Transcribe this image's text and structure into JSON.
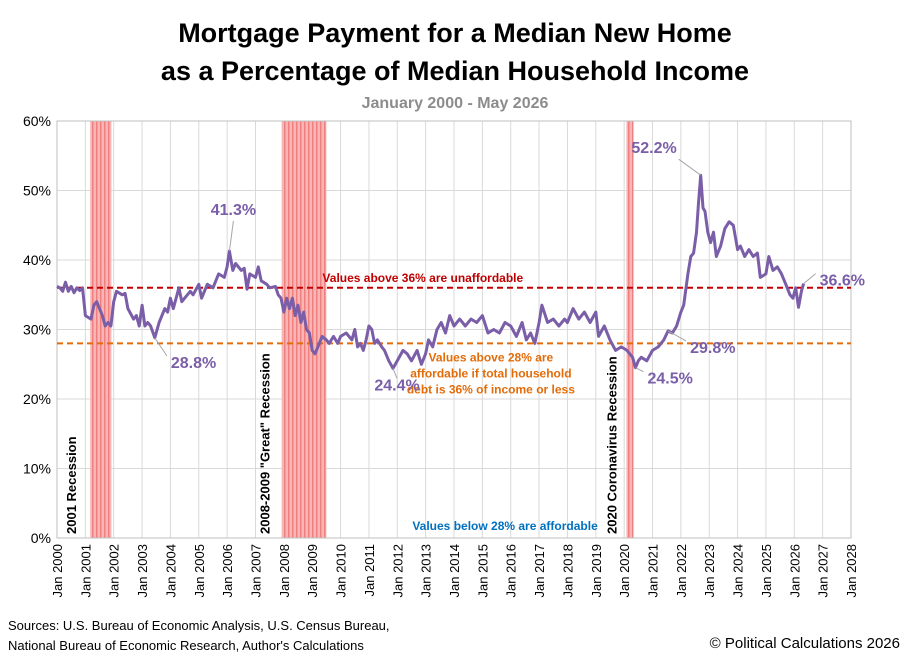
{
  "chart_data": {
    "type": "line",
    "title": [
      "Mortgage Payment for a Median New Home",
      "as a Percentage of Median Household Income"
    ],
    "subtitle": "January 2000 - May 2026",
    "color": "#7a5ea8",
    "grid": true,
    "xlim": [
      2000,
      2028
    ],
    "xticks": [
      {
        "value": 2000,
        "label": "Jan 2000"
      },
      {
        "value": 2001,
        "label": "Jan 2001"
      },
      {
        "value": 2002,
        "label": "Jan 2002"
      },
      {
        "value": 2003,
        "label": "Jan 2003"
      },
      {
        "value": 2004,
        "label": "Jan 2004"
      },
      {
        "value": 2005,
        "label": "Jan 2005"
      },
      {
        "value": 2006,
        "label": "Jan 2006"
      },
      {
        "value": 2007,
        "label": "Jan 2007"
      },
      {
        "value": 2008,
        "label": "Jan 2008"
      },
      {
        "value": 2009,
        "label": "Jan 2009"
      },
      {
        "value": 2010,
        "label": "Jan 2010"
      },
      {
        "value": 2011,
        "label": "Jan 2011"
      },
      {
        "value": 2012,
        "label": "Jan 2012"
      },
      {
        "value": 2013,
        "label": "Jan 2013"
      },
      {
        "value": 2014,
        "label": "Jan 2014"
      },
      {
        "value": 2015,
        "label": "Jan 2015"
      },
      {
        "value": 2016,
        "label": "Jan 2016"
      },
      {
        "value": 2017,
        "label": "Jan 2017"
      },
      {
        "value": 2018,
        "label": "Jan 2018"
      },
      {
        "value": 2019,
        "label": "Jan 2019"
      },
      {
        "value": 2020,
        "label": "Jan 2020"
      },
      {
        "value": 2021,
        "label": "Jan 2021"
      },
      {
        "value": 2022,
        "label": "Jan 2022"
      },
      {
        "value": 2023,
        "label": "Jan 2023"
      },
      {
        "value": 2024,
        "label": "Jan 2024"
      },
      {
        "value": 2025,
        "label": "Jan 2025"
      },
      {
        "value": 2026,
        "label": "Jan 2026"
      },
      {
        "value": 2027,
        "label": "Jan 2027"
      },
      {
        "value": 2028,
        "label": "Jan 2028"
      }
    ],
    "ylim": [
      0,
      60
    ],
    "yticks": [
      {
        "value": 0,
        "label": "0%"
      },
      {
        "value": 10,
        "label": "10%"
      },
      {
        "value": 20,
        "label": "20%"
      },
      {
        "value": 30,
        "label": "30%"
      },
      {
        "value": 40,
        "label": "40%"
      },
      {
        "value": 50,
        "label": "50%"
      },
      {
        "value": 60,
        "label": "60%"
      }
    ],
    "x": [
      2000.0,
      2000.1,
      2000.2,
      2000.3,
      2000.4,
      2000.5,
      2000.6,
      2000.7,
      2000.8,
      2000.9,
      2001.0,
      2001.2,
      2001.3,
      2001.4,
      2001.5,
      2001.6,
      2001.7,
      2001.8,
      2001.9,
      2002.0,
      2002.1,
      2002.3,
      2002.4,
      2002.5,
      2002.7,
      2002.8,
      2002.9,
      2003.0,
      2003.1,
      2003.2,
      2003.3,
      2003.45,
      2003.6,
      2003.8,
      2003.9,
      2004.0,
      2004.1,
      2004.3,
      2004.4,
      2004.5,
      2004.7,
      2004.8,
      2005.0,
      2005.1,
      2005.3,
      2005.5,
      2005.7,
      2005.9,
      2006.0,
      2006.08,
      2006.2,
      2006.3,
      2006.5,
      2006.6,
      2006.7,
      2006.8,
      2007.0,
      2007.1,
      2007.2,
      2007.4,
      2007.5,
      2007.7,
      2007.8,
      2007.9,
      2008.0,
      2008.1,
      2008.2,
      2008.3,
      2008.4,
      2008.5,
      2008.6,
      2008.7,
      2008.8,
      2008.9,
      2009.0,
      2009.1,
      2009.2,
      2009.35,
      2009.5,
      2009.6,
      2009.75,
      2009.9,
      2010.0,
      2010.2,
      2010.4,
      2010.5,
      2010.6,
      2010.7,
      2010.8,
      2010.9,
      2011.0,
      2011.1,
      2011.2,
      2011.3,
      2011.45,
      2011.55,
      2011.7,
      2011.85,
      2012.0,
      2012.2,
      2012.35,
      2012.5,
      2012.7,
      2012.85,
      2013.0,
      2013.1,
      2013.25,
      2013.4,
      2013.55,
      2013.7,
      2013.85,
      2014.0,
      2014.2,
      2014.4,
      2014.6,
      2014.8,
      2015.0,
      2015.2,
      2015.4,
      2015.6,
      2015.8,
      2016.0,
      2016.2,
      2016.4,
      2016.55,
      2016.7,
      2016.85,
      2017.0,
      2017.1,
      2017.3,
      2017.5,
      2017.7,
      2017.9,
      2018.0,
      2018.2,
      2018.4,
      2018.6,
      2018.8,
      2019.0,
      2019.1,
      2019.3,
      2019.5,
      2019.7,
      2019.9,
      2020.1,
      2020.3,
      2020.4,
      2020.5,
      2020.6,
      2020.8,
      2021.0,
      2021.2,
      2021.4,
      2021.55,
      2021.7,
      2021.85,
      2022.0,
      2022.1,
      2022.25,
      2022.35,
      2022.45,
      2022.55,
      2022.62,
      2022.7,
      2022.78,
      2022.85,
      2022.95,
      2023.05,
      2023.15,
      2023.25,
      2023.4,
      2023.55,
      2023.7,
      2023.85,
      2024.0,
      2024.1,
      2024.25,
      2024.4,
      2024.55,
      2024.7,
      2024.8,
      2025.0,
      2025.1,
      2025.25,
      2025.4,
      2025.55,
      2025.7,
      2025.85,
      2025.95,
      2026.05,
      2026.15,
      2026.25,
      2026.33
    ],
    "values": [
      36.2,
      36,
      35.5,
      36.8,
      35.5,
      36.2,
      35.3,
      36,
      35.6,
      36,
      32,
      31.5,
      33.5,
      34,
      33,
      32,
      30.5,
      31,
      30.5,
      34,
      35.5,
      35,
      35.2,
      33,
      31.5,
      32,
      30.5,
      33.5,
      30.5,
      31,
      30.5,
      28.8,
      31,
      33,
      32.5,
      34.5,
      33,
      36,
      34,
      34.5,
      35.5,
      35,
      36.5,
      34.5,
      36.5,
      36,
      38,
      37.5,
      39,
      41.3,
      38.5,
      39.5,
      38.5,
      38.8,
      35.8,
      38,
      37.5,
      39,
      37,
      36.5,
      36,
      36.2,
      35,
      34.5,
      32.5,
      34.5,
      33,
      34.5,
      32,
      33.5,
      31,
      32.5,
      30,
      29.5,
      27,
      26.5,
      27.5,
      29,
      28.5,
      28,
      29,
      28,
      29,
      29.5,
      28.5,
      30,
      27.5,
      28,
      27,
      28.5,
      30.5,
      30,
      28,
      28.5,
      27.5,
      27,
      25.5,
      24.4,
      25.5,
      27,
      26.5,
      25.5,
      27,
      25,
      26.5,
      28.5,
      27.5,
      30,
      31,
      29.5,
      32,
      30.5,
      31.5,
      30.5,
      31.5,
      31,
      32,
      29.5,
      30,
      29.5,
      31,
      30.5,
      29,
      31,
      28.5,
      29.5,
      28,
      31,
      33.5,
      31,
      31.5,
      30.5,
      31.5,
      31,
      33,
      31.5,
      32.5,
      31,
      32.5,
      29,
      30.5,
      28.5,
      27,
      27.5,
      27,
      26,
      24.5,
      25.5,
      26,
      25.5,
      27,
      27.5,
      28.5,
      29.8,
      29.5,
      30.5,
      32.5,
      33.5,
      38,
      40.5,
      41,
      44,
      48,
      52.2,
      47.5,
      47,
      44,
      42.5,
      44,
      40.5,
      42,
      44.5,
      45.5,
      45,
      41.5,
      42,
      40.5,
      41.5,
      40.5,
      41,
      37.5,
      38,
      40.5,
      38.5,
      39,
      38,
      36.5,
      35,
      34.5,
      36,
      33.2,
      35.5,
      36.6
    ],
    "annotations": [
      {
        "text": "41.3%",
        "x": 2006.08,
        "y": 41.3
      },
      {
        "text": "28.8%",
        "x": 2003.45,
        "y": 28.8
      },
      {
        "text": "24.4%",
        "x": 2011.85,
        "y": 24.4
      },
      {
        "text": "24.5%",
        "x": 2020.4,
        "y": 24.5
      },
      {
        "text": "52.2%",
        "x": 2022.7,
        "y": 52.2
      },
      {
        "text": "29.8%",
        "x": 2021.55,
        "y": 29.8
      },
      {
        "text": "36.6%",
        "x": 2026.33,
        "y": 36.6
      }
    ],
    "recessions": [
      {
        "label": "2001 Recession",
        "start": 2001.17,
        "end": 2001.92
      },
      {
        "label": "2008-2009 \"Great\" Recession",
        "start": 2007.92,
        "end": 2009.5
      },
      {
        "label": "2020 Coronavirus Recession",
        "start": 2020.08,
        "end": 2020.33
      }
    ],
    "reference_lines": [
      {
        "value": 36,
        "color": "#c00000",
        "label": [
          "Values above 36% are unaffordable"
        ]
      },
      {
        "value": 28,
        "color": "#e36c09",
        "label": [
          "Values above 28% are",
          "affordable if total household",
          "debt is 36% of income or less"
        ]
      }
    ],
    "note": "Values below 28% are affordable",
    "sources": [
      "Sources: U.S. Bureau of Economic Analysis, U.S. Census Bureau,",
      "National Bureau of Economic Research, Author's Calculations"
    ],
    "copyright": "© Political Calculations 2026"
  }
}
